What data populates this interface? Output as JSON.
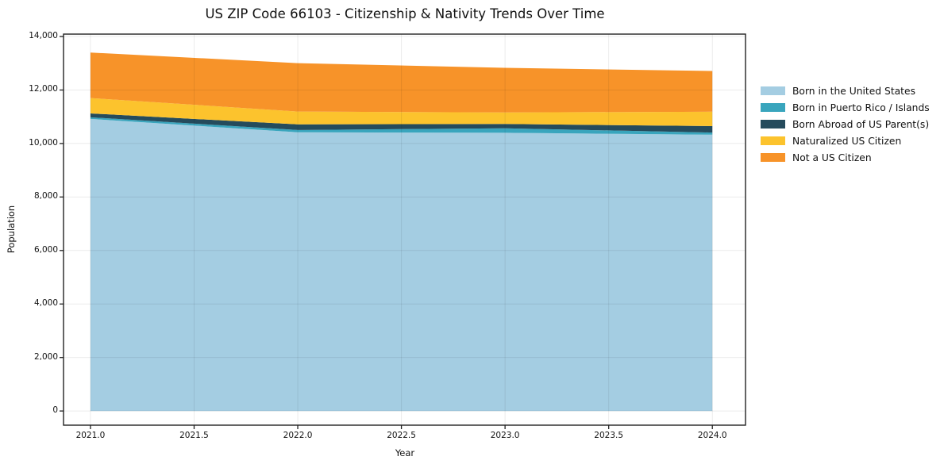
{
  "title": "US ZIP Code 66103 - Citizenship & Nativity Trends Over Time",
  "axes": {
    "x_label": "Year",
    "y_label": "Population"
  },
  "chart_data": {
    "type": "area",
    "stacked": true,
    "title": "US ZIP Code 66103 - Citizenship & Nativity Trends Over Time",
    "xlabel": "Year",
    "ylabel": "Population",
    "x": [
      2021,
      2022,
      2023,
      2024
    ],
    "series": [
      {
        "name": "Born in the United States",
        "color": "#a4cde2",
        "values": [
          10920,
          10420,
          10400,
          10330
        ]
      },
      {
        "name": "Born in Puerto Rico / Islands",
        "color": "#39a5bd",
        "values": [
          60,
          85,
          170,
          80
        ]
      },
      {
        "name": "Born Abroad of US Parent(s)",
        "color": "#254b5c",
        "values": [
          145,
          210,
          160,
          240
        ]
      },
      {
        "name": "Naturalized US Citizen",
        "color": "#fcc32d",
        "values": [
          575,
          480,
          430,
          540
        ]
      },
      {
        "name": "Not a US Citizen",
        "color": "#f79329",
        "values": [
          1700,
          1810,
          1670,
          1520
        ]
      }
    ],
    "totals_by_year": [
      13400,
      13005,
      12830,
      12710
    ],
    "xlim": [
      2020.87,
      2024.16
    ],
    "ylim": [
      -530,
      14090
    ],
    "xticks": [
      2021.0,
      2021.5,
      2022.0,
      2022.5,
      2023.0,
      2023.5,
      2024.0
    ],
    "yticks": [
      0,
      2000,
      4000,
      6000,
      8000,
      10000,
      12000,
      14000
    ],
    "grid": true,
    "grid_color": "rgba(0,0,0,0.08)",
    "background": "#ffffff",
    "spine_color": "#222222",
    "legend_position": "right-outside"
  }
}
